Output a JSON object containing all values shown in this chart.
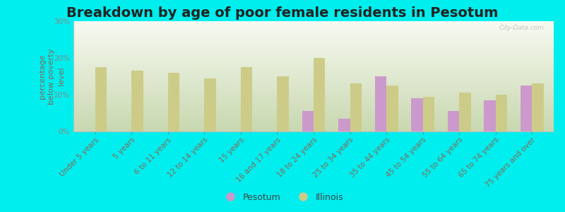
{
  "title": "Breakdown by age of poor female residents in Pesotum",
  "ylabel": "percentage\nbelow poverty\nlevel",
  "categories": [
    "Under 5 years",
    "5 years",
    "6 to 11 years",
    "12 to 14 years",
    "15 years",
    "16 and 17 years",
    "18 to 24 years",
    "25 to 34 years",
    "35 to 44 years",
    "45 to 54 years",
    "55 to 64 years",
    "65 to 74 years",
    "75 years and over"
  ],
  "pesotum": [
    0,
    0,
    0,
    0,
    0,
    0,
    5.5,
    3.5,
    15.0,
    9.0,
    5.5,
    8.5,
    12.5
  ],
  "illinois": [
    17.5,
    16.5,
    16.0,
    14.5,
    17.5,
    15.0,
    20.0,
    13.0,
    12.5,
    9.5,
    10.5,
    10.0,
    13.0
  ],
  "pesotum_color": "#cc99cc",
  "illinois_color": "#cccc88",
  "background_color": "#00eeee",
  "plot_bg_top_left": "#c8d8b0",
  "plot_bg_bottom_right": "#f8faf2",
  "ylim": [
    0,
    30
  ],
  "yticks": [
    0,
    10,
    20,
    30
  ],
  "ytick_labels": [
    "0%",
    "10%",
    "20%",
    "30%"
  ],
  "title_fontsize": 14,
  "axis_label_fontsize": 8,
  "tick_fontsize": 7.5,
  "bar_width": 0.32,
  "watermark": "City-Data.com"
}
